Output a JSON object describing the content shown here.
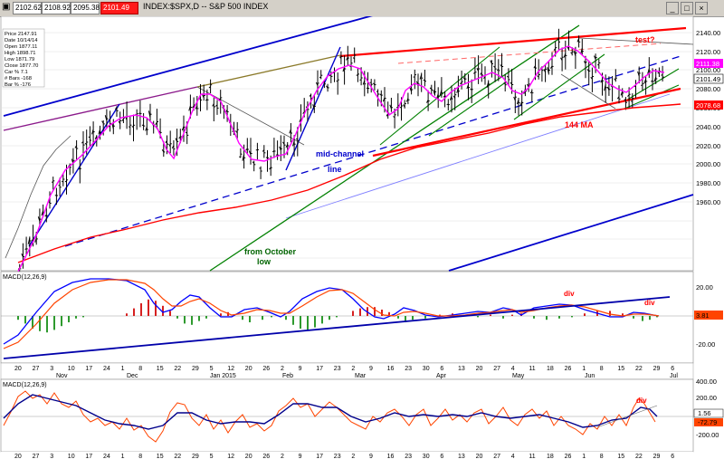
{
  "titlebar": {
    "values": [
      "2102.62",
      "2108.92",
      "2095.38",
      "2101.49"
    ],
    "title": "INDEX:$SPX,D -- S&P 500 INDEX"
  },
  "info": {
    "lines": [
      "Price  2147.91",
      "Date  10/14/14",
      "Open  1877.11",
      "High  1898.71",
      "Low  1871.79",
      "Close  1877.70",
      "Car %  7.1",
      "# Bars  -168",
      "Bar %  -176"
    ]
  },
  "price_axis": {
    "labels": [
      "2140.00",
      "2120.00",
      "2100.00",
      "2080.00",
      "2060.00",
      "2040.00",
      "2020.00",
      "2000.00",
      "1980.00",
      "1960.00"
    ]
  },
  "price_tags": {
    "current": "2111.38",
    "close": "2101.49",
    "ma": "2078.68"
  },
  "annotations": {
    "mid_channel": "mid-channel",
    "line": "line",
    "from_october": "from October",
    "low": "low",
    "ma_label": "144 MA",
    "test": "test?",
    "div1": "div",
    "div2": "div",
    "div3": "div"
  },
  "macd1": {
    "title": "MACD(12,26,9)",
    "axis": [
      "20.00",
      "-20.00"
    ],
    "tag": "3.81"
  },
  "macd2": {
    "title": "MACD(12,26,9)",
    "axis": [
      "400.00",
      "200.00",
      "-200.00"
    ],
    "tag_a": "1.56",
    "tag_b": "-72.79"
  },
  "xaxis": {
    "days": [
      "20",
      "27",
      "3",
      "10",
      "17",
      "24",
      "1",
      "8",
      "15",
      "22",
      "29",
      "5",
      "12",
      "20",
      "26",
      "2",
      "9",
      "17",
      "23",
      "2",
      "9",
      "16",
      "23",
      "30",
      "6",
      "13",
      "20",
      "27",
      "4",
      "11",
      "18",
      "26",
      "1",
      "8",
      "15",
      "22",
      "29",
      "6"
    ],
    "months": [
      "Nov",
      "Dec",
      "Jan 2015",
      "Feb",
      "Mar",
      "Apr",
      "May",
      "Jun",
      "Jul"
    ]
  },
  "colors": {
    "price": "#000000",
    "ma_fast": "#ff00ff",
    "ma_144": "#ff0000",
    "channel_blue": "#0000cc",
    "channel_red": "#ff0000",
    "trend_green": "#008000",
    "macd_line": "#0000ff",
    "signal_line": "#ff4400",
    "hist_up": "#2e9a2e",
    "hist_down": "#d62020"
  }
}
